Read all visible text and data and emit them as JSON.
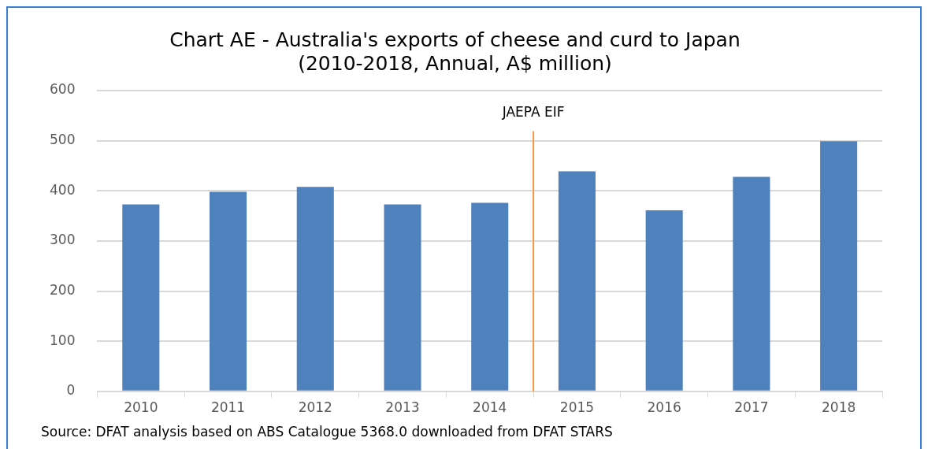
{
  "chart_data": {
    "type": "bar",
    "title": "Chart AE - Australia's exports of cheese and curd to Japan\n(2010-2018, Annual, A$ million)",
    "categories": [
      "2010",
      "2011",
      "2012",
      "2013",
      "2014",
      "2015",
      "2016",
      "2017",
      "2018"
    ],
    "series": [
      {
        "color": "#4f81bd",
        "values": [
          373,
          398,
          408,
          373,
          376,
          439,
          361,
          428,
          499
        ]
      }
    ],
    "ylim": [
      0,
      600
    ],
    "yticks": [
      0,
      100,
      200,
      300,
      400,
      500,
      600
    ],
    "grid": "y",
    "legend": false,
    "ref_lines": [
      {
        "axis": "x",
        "value": "2015",
        "label": "JAEPA EIF",
        "color": "#f79646"
      }
    ],
    "annotations": [
      "Source: DFAT analysis based on ABS Catalogue 5368.0 downloaded from DFAT STARS"
    ]
  }
}
